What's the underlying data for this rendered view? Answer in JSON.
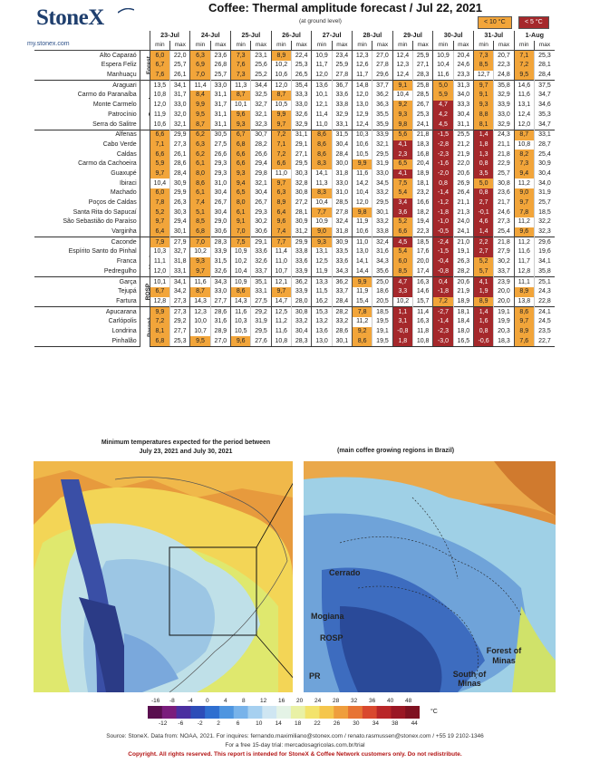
{
  "header": {
    "logo": "StoneX",
    "url": "my.stonex.com",
    "title": "Coffee: Thermal amplitude forecast / Jul 22, 2021",
    "subtitle": "(at ground level)",
    "legend_orange": "< 10 °C",
    "legend_red": "< 5 °C"
  },
  "colors": {
    "orange": "#f2a53a",
    "red": "#a5282b",
    "brand": "#1f3f6e",
    "copyright": "#b31515"
  },
  "table": {
    "dates": [
      "23-Jul",
      "24-Jul",
      "25-Jul",
      "26-Jul",
      "27-Jul",
      "28-Jul",
      "29-Jul",
      "30-Jul",
      "31-Jul",
      "1-Aug"
    ],
    "min_label": "min",
    "max_label": "max",
    "regions": [
      {
        "name": "Forest",
        "cities": [
          {
            "name": "Alto Caparaó",
            "v": [
              "6,0",
              "22,0",
              "6,3",
              "23,6",
              "7,3",
              "23,1",
              "8,9",
              "22,4",
              "10,9",
              "23,4",
              "12,3",
              "27,0",
              "12,4",
              "25,9",
              "10,9",
              "20,4",
              "7,3",
              "20,7",
              "7,1",
              "25,3"
            ]
          },
          {
            "name": "Espera Feliz",
            "v": [
              "6,7",
              "25,7",
              "6,9",
              "26,8",
              "7,6",
              "25,6",
              "10,2",
              "25,3",
              "11,7",
              "25,9",
              "12,6",
              "27,8",
              "12,3",
              "27,1",
              "10,4",
              "24,6",
              "8,5",
              "22,3",
              "7,2",
              "28,1"
            ]
          },
          {
            "name": "Manhuaçu",
            "v": [
              "7,6",
              "26,1",
              "7,0",
              "25,7",
              "7,3",
              "25,2",
              "10,6",
              "26,5",
              "12,0",
              "27,8",
              "11,7",
              "29,6",
              "12,4",
              "28,3",
              "11,6",
              "23,3",
              "12,7",
              "24,8",
              "9,5",
              "28,4"
            ]
          }
        ]
      },
      {
        "name": "Cerrado",
        "cities": [
          {
            "name": "Araguari",
            "v": [
              "13,5",
              "34,1",
              "11,4",
              "33,0",
              "11,3",
              "34,4",
              "12,0",
              "35,4",
              "13,6",
              "36,7",
              "14,8",
              "37,7",
              "9,1",
              "25,8",
              "5,0",
              "31,3",
              "9,7",
              "35,8",
              "14,6",
              "37,5"
            ]
          },
          {
            "name": "Carmo do Paranaíba",
            "v": [
              "10,8",
              "31,7",
              "8,4",
              "31,1",
              "8,7",
              "32,5",
              "8,7",
              "33,3",
              "10,1",
              "33,6",
              "12,0",
              "36,2",
              "10,4",
              "28,5",
              "5,9",
              "34,0",
              "9,1",
              "32,9",
              "11,6",
              "34,7"
            ]
          },
          {
            "name": "Monte Carmelo",
            "v": [
              "12,0",
              "33,0",
              "9,9",
              "31,7",
              "10,1",
              "32,7",
              "10,5",
              "33,0",
              "12,1",
              "33,8",
              "13,0",
              "36,3",
              "9,2",
              "26,7",
              "4,7",
              "33,3",
              "9,3",
              "33,9",
              "13,1",
              "34,6"
            ]
          },
          {
            "name": "Patrocínio",
            "v": [
              "11,9",
              "32,0",
              "9,5",
              "31,1",
              "9,6",
              "32,1",
              "9,9",
              "32,6",
              "11,4",
              "32,9",
              "12,9",
              "35,5",
              "9,3",
              "25,3",
              "4,2",
              "30,4",
              "8,8",
              "33,0",
              "12,4",
              "35,3"
            ]
          },
          {
            "name": "Serra do Salitre",
            "v": [
              "10,6",
              "32,1",
              "8,7",
              "31,1",
              "9,3",
              "32,3",
              "9,7",
              "32,9",
              "11,0",
              "33,1",
              "12,4",
              "35,9",
              "9,8",
              "24,1",
              "4,5",
              "31,1",
              "8,1",
              "32,9",
              "12,0",
              "34,7"
            ]
          }
        ]
      },
      {
        "name": "South of Minas",
        "cities": [
          {
            "name": "Alfenas",
            "v": [
              "6,6",
              "29,9",
              "6,2",
              "30,5",
              "6,7",
              "30,7",
              "7,2",
              "31,1",
              "8,6",
              "31,5",
              "10,3",
              "33,9",
              "5,6",
              "21,8",
              "-1,5",
              "25,5",
              "1,4",
              "24,3",
              "8,7",
              "33,1"
            ]
          },
          {
            "name": "Cabo Verde",
            "v": [
              "7,1",
              "27,3",
              "6,3",
              "27,5",
              "6,8",
              "28,2",
              "7,1",
              "29,1",
              "8,6",
              "30,4",
              "10,6",
              "32,1",
              "4,1",
              "18,3",
              "-2,8",
              "21,2",
              "1,8",
              "21,1",
              "10,8",
              "28,7"
            ]
          },
          {
            "name": "Caldas",
            "v": [
              "6,6",
              "26,1",
              "6,2",
              "26,6",
              "6,6",
              "26,6",
              "7,2",
              "27,1",
              "8,6",
              "28,4",
              "10,5",
              "29,5",
              "2,3",
              "16,8",
              "-2,3",
              "21,9",
              "1,3",
              "21,8",
              "8,2",
              "25,4"
            ]
          },
          {
            "name": "Carmo da Cachoeira",
            "v": [
              "5,9",
              "28,6",
              "6,1",
              "29,3",
              "6,6",
              "29,4",
              "6,6",
              "29,5",
              "8,3",
              "30,0",
              "9,9",
              "31,9",
              "6,5",
              "20,4",
              "-1,6",
              "22,0",
              "0,8",
              "22,9",
              "7,3",
              "30,9"
            ]
          },
          {
            "name": "Guaxupé",
            "v": [
              "9,7",
              "28,4",
              "8,0",
              "29,3",
              "9,3",
              "29,8",
              "11,0",
              "30,3",
              "14,1",
              "31,8",
              "11,6",
              "33,0",
              "4,1",
              "18,9",
              "-2,0",
              "20,6",
              "3,5",
              "25,7",
              "9,4",
              "30,4"
            ]
          },
          {
            "name": "Ibiraci",
            "v": [
              "10,4",
              "30,9",
              "8,6",
              "31,0",
              "9,4",
              "32,1",
              "9,7",
              "32,8",
              "11,3",
              "33,0",
              "14,2",
              "34,5",
              "7,5",
              "18,1",
              "0,8",
              "26,9",
              "5,0",
              "30,8",
              "11,2",
              "34,0"
            ]
          },
          {
            "name": "Machado",
            "v": [
              "6,0",
              "29,9",
              "6,1",
              "30,4",
              "6,5",
              "30,4",
              "6,3",
              "30,8",
              "8,3",
              "31,0",
              "10,4",
              "33,2",
              "5,4",
              "23,2",
              "-1,4",
              "26,4",
              "0,8",
              "23,6",
              "9,0",
              "31,9"
            ]
          },
          {
            "name": "Poços de Caldas",
            "v": [
              "7,8",
              "26,3",
              "7,4",
              "26,7",
              "8,0",
              "26,7",
              "8,9",
              "27,2",
              "10,4",
              "28,5",
              "12,0",
              "29,5",
              "3,4",
              "16,6",
              "-1,2",
              "21,1",
              "2,7",
              "21,7",
              "9,7",
              "25,7"
            ]
          },
          {
            "name": "Santa Rita do Sapucaí",
            "v": [
              "5,2",
              "30,3",
              "5,1",
              "30,4",
              "6,1",
              "29,3",
              "6,4",
              "28,1",
              "7,7",
              "27,8",
              "9,8",
              "30,1",
              "3,6",
              "18,2",
              "-1,8",
              "21,3",
              "-0,1",
              "24,6",
              "7,8",
              "18,5"
            ]
          },
          {
            "name": "São Sebastião do Paraíso",
            "v": [
              "9,7",
              "29,4",
              "8,5",
              "29,0",
              "9,1",
              "30,2",
              "9,6",
              "30,9",
              "10,9",
              "32,4",
              "11,9",
              "33,2",
              "5,2",
              "19,4",
              "-1,0",
              "24,0",
              "4,6",
              "27,3",
              "11,2",
              "32,2"
            ]
          },
          {
            "name": "Varginha",
            "v": [
              "6,4",
              "30,1",
              "6,8",
              "30,6",
              "7,0",
              "30,6",
              "7,4",
              "31,2",
              "9,0",
              "31,8",
              "10,6",
              "33,8",
              "6,6",
              "22,3",
              "-0,5",
              "24,1",
              "1,4",
              "25,4",
              "9,6",
              "32,3"
            ]
          }
        ]
      },
      {
        "name": "Mogiana",
        "cities": [
          {
            "name": "Caconde",
            "v": [
              "7,9",
              "27,9",
              "7,0",
              "28,3",
              "7,5",
              "29,1",
              "7,7",
              "29,9",
              "9,3",
              "30,9",
              "11,0",
              "32,4",
              "4,5",
              "18,5",
              "-2,4",
              "21,0",
              "2,2",
              "21,8",
              "11,2",
              "29,6"
            ]
          },
          {
            "name": "Espírito Santo do Pinhal",
            "v": [
              "10,3",
              "32,7",
              "10,2",
              "33,9",
              "10,9",
              "33,6",
              "11,4",
              "33,8",
              "13,1",
              "33,5",
              "13,0",
              "31,6",
              "5,4",
              "17,6",
              "-1,5",
              "19,1",
              "2,7",
              "27,9",
              "11,6",
              "19,6"
            ]
          },
          {
            "name": "Franca",
            "v": [
              "11,1",
              "31,8",
              "9,3",
              "31,5",
              "10,2",
              "32,6",
              "11,0",
              "33,6",
              "12,5",
              "33,6",
              "14,1",
              "34,3",
              "6,0",
              "20,0",
              "-0,4",
              "26,3",
              "5,2",
              "30,2",
              "11,7",
              "34,1"
            ]
          },
          {
            "name": "Pedregulho",
            "v": [
              "12,0",
              "33,1",
              "9,7",
              "32,6",
              "10,4",
              "33,7",
              "10,7",
              "33,9",
              "11,9",
              "34,3",
              "14,4",
              "35,6",
              "8,5",
              "17,4",
              "-0,8",
              "28,2",
              "5,7",
              "33,7",
              "12,8",
              "35,8"
            ]
          }
        ]
      },
      {
        "name": "ROSP",
        "cities": [
          {
            "name": "Garça",
            "v": [
              "10,1",
              "34,1",
              "11,6",
              "34,3",
              "10,9",
              "35,1",
              "12,1",
              "36,2",
              "13,3",
              "36,2",
              "9,9",
              "25,0",
              "4,7",
              "16,3",
              "0,4",
              "20,6",
              "4,1",
              "23,9",
              "11,1",
              "25,1"
            ]
          },
          {
            "name": "Tejupá",
            "v": [
              "6,7",
              "34,2",
              "8,7",
              "33,0",
              "8,6",
              "33,1",
              "9,7",
              "33,9",
              "11,5",
              "33,7",
              "11,9",
              "18,6",
              "3,3",
              "14,6",
              "-1,8",
              "21,9",
              "1,9",
              "20,0",
              "8,9",
              "24,3"
            ]
          },
          {
            "name": "Fartura",
            "v": [
              "12,8",
              "27,3",
              "14,3",
              "27,7",
              "14,3",
              "27,5",
              "14,7",
              "28,0",
              "16,2",
              "28,4",
              "15,4",
              "20,5",
              "10,2",
              "15,7",
              "7,2",
              "18,9",
              "8,9",
              "20,0",
              "13,8",
              "22,8"
            ]
          }
        ]
      },
      {
        "name": "Paraná",
        "cities": [
          {
            "name": "Apucarana",
            "v": [
              "9,9",
              "27,3",
              "12,3",
              "28,6",
              "11,6",
              "29,2",
              "12,5",
              "30,8",
              "15,3",
              "28,2",
              "7,8",
              "18,5",
              "1,1",
              "11,4",
              "-2,7",
              "18,1",
              "1,4",
              "19,1",
              "8,6",
              "24,1"
            ]
          },
          {
            "name": "Carlópolis",
            "v": [
              "7,2",
              "29,2",
              "10,0",
              "31,6",
              "10,3",
              "31,9",
              "11,2",
              "33,2",
              "13,2",
              "33,2",
              "11,2",
              "19,5",
              "3,1",
              "16,3",
              "-1,4",
              "18,4",
              "1,6",
              "19,9",
              "9,7",
              "24,5"
            ]
          },
          {
            "name": "Londrina",
            "v": [
              "8,1",
              "27,7",
              "10,7",
              "28,9",
              "10,5",
              "29,5",
              "11,6",
              "30,4",
              "13,6",
              "28,6",
              "9,2",
              "19,1",
              "-0,8",
              "11,8",
              "-2,3",
              "18,0",
              "0,8",
              "20,3",
              "8,9",
              "23,5"
            ]
          },
          {
            "name": "Pinhalão",
            "v": [
              "6,8",
              "25,3",
              "9,5",
              "27,0",
              "9,6",
              "27,6",
              "10,8",
              "28,3",
              "13,0",
              "30,1",
              "8,6",
              "19,5",
              "1,8",
              "10,8",
              "-3,0",
              "16,5",
              "-0,6",
              "18,3",
              "7,6",
              "22,7"
            ]
          }
        ]
      }
    ]
  },
  "maps": {
    "caption_left_line1": "Minimum temperatures expected for the period between",
    "caption_left_line2": "July 23, 2021 and July 30, 2021",
    "caption_right": "(main coffee growing regions in Brazil)",
    "labels": [
      "Cerrado",
      "Mogiana",
      "ROSP",
      "Forest of Minas",
      "South of Minas",
      "PR"
    ],
    "contour_labels_left": [
      "15",
      "20",
      "25",
      "10",
      "15",
      "5",
      "0",
      "15",
      "20",
      "25",
      "5"
    ]
  },
  "scale": {
    "top_ticks": [
      "-16",
      "-8",
      "-4",
      "0",
      "4",
      "8",
      "12",
      "16",
      "20",
      "24",
      "28",
      "32",
      "36",
      "40",
      "48"
    ],
    "bottom_ticks": [
      "-12",
      "-6",
      "-2",
      "2",
      "6",
      "10",
      "14",
      "18",
      "22",
      "26",
      "30",
      "34",
      "38",
      "44"
    ],
    "unit": "°C"
  },
  "footer": {
    "source": "Source: StoneX. Data from: NOAA, 2021. For inquires: fernando.maximiliano@stonex.com / renato.rasmussen@stonex.com / +55 19 2102-1346",
    "trial": "For a free 15-day trial: mercadosagricolas.com.br/trial",
    "copyright": "Copyright. All rights reserved. This report is intended for StoneX & Coffee Network customers only. Do not redistribute."
  }
}
